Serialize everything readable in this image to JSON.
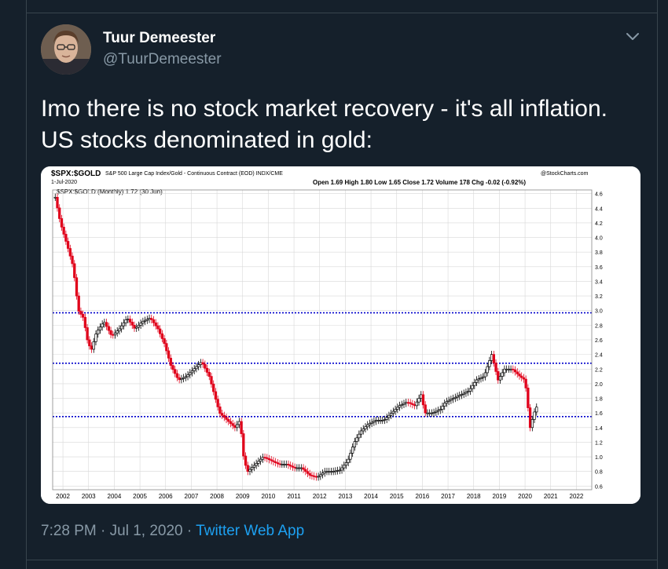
{
  "tweet": {
    "author_name": "Tuur Demeester",
    "author_handle": "@TuurDemeester",
    "text_line1": "Imo there is no stock market recovery - it's all inflation.",
    "text_line2": "US stocks denominated in gold:",
    "time": "7:28 PM",
    "separator1": " · ",
    "date": "Jul 1, 2020",
    "separator2": " · ",
    "source_app": "Twitter Web App"
  },
  "colors": {
    "background": "#15202b",
    "accent": "#1da1f2",
    "up_candle": "#000000",
    "down_candle": "#e0001a",
    "reference_line": "#0000cc"
  },
  "icons": {
    "menu": "chevron-down-icon"
  },
  "chart_header": {
    "symbol": "$SPX:$GOLD",
    "description": "S&P 500 Large Cap Index/Gold - Continuous Contract (EOD)  INDX/CME",
    "credit": "@StockCharts.com",
    "date": "1-Jul-2020",
    "stats": "Open 1.69  High 1.80  Low 1.65  Close 1.72  Volume 178  Chg -0.02 (-0.92%)",
    "legend": "$SPX:$GOLD (Monthly) 1.72 (30 Jun)"
  },
  "chart_data": {
    "type": "candlestick",
    "title": "$SPX:$GOLD",
    "frequency": "Monthly",
    "x_ticks": [
      "2002",
      "2003",
      "2004",
      "2005",
      "2006",
      "2007",
      "2008",
      "2009",
      "2010",
      "2011",
      "2012",
      "2013",
      "2014",
      "2015",
      "2016",
      "2017",
      "2018",
      "2019",
      "2020",
      "2021",
      "2022"
    ],
    "y_ticks": [
      "0.6",
      "0.8",
      "1.0",
      "1.2",
      "1.4",
      "1.6",
      "1.8",
      "2.0",
      "2.2",
      "2.4",
      "2.6",
      "2.8",
      "3.0",
      "3.2",
      "3.4",
      "3.6",
      "3.8",
      "4.0",
      "4.2",
      "4.4",
      "4.6"
    ],
    "ylim": [
      0.55,
      4.65
    ],
    "xlim": [
      2001.6,
      2022.6
    ],
    "reference_lines": [
      2.97,
      2.28,
      1.55
    ],
    "grid": true,
    "y_axis_side": "right",
    "closes": [
      {
        "t": 2001.7,
        "v": 4.55
      },
      {
        "t": 2001.9,
        "v": 4.2
      },
      {
        "t": 2002.2,
        "v": 3.85
      },
      {
        "t": 2002.4,
        "v": 3.6
      },
      {
        "t": 2002.6,
        "v": 3.0
      },
      {
        "t": 2002.8,
        "v": 2.9
      },
      {
        "t": 2002.95,
        "v": 2.6
      },
      {
        "t": 2003.1,
        "v": 2.45
      },
      {
        "t": 2003.3,
        "v": 2.7
      },
      {
        "t": 2003.6,
        "v": 2.85
      },
      {
        "t": 2003.9,
        "v": 2.65
      },
      {
        "t": 2004.2,
        "v": 2.75
      },
      {
        "t": 2004.5,
        "v": 2.9
      },
      {
        "t": 2004.8,
        "v": 2.75
      },
      {
        "t": 2005.1,
        "v": 2.85
      },
      {
        "t": 2005.4,
        "v": 2.9
      },
      {
        "t": 2005.7,
        "v": 2.75
      },
      {
        "t": 2005.95,
        "v": 2.55
      },
      {
        "t": 2006.2,
        "v": 2.25
      },
      {
        "t": 2006.5,
        "v": 2.05
      },
      {
        "t": 2006.8,
        "v": 2.1
      },
      {
        "t": 2007.1,
        "v": 2.2
      },
      {
        "t": 2007.4,
        "v": 2.3
      },
      {
        "t": 2007.7,
        "v": 2.1
      },
      {
        "t": 2007.9,
        "v": 1.85
      },
      {
        "t": 2008.1,
        "v": 1.6
      },
      {
        "t": 2008.4,
        "v": 1.5
      },
      {
        "t": 2008.7,
        "v": 1.4
      },
      {
        "t": 2008.9,
        "v": 1.5
      },
      {
        "t": 2009.05,
        "v": 0.95
      },
      {
        "t": 2009.2,
        "v": 0.8
      },
      {
        "t": 2009.5,
        "v": 0.9
      },
      {
        "t": 2009.8,
        "v": 1.0
      },
      {
        "t": 2010.1,
        "v": 0.95
      },
      {
        "t": 2010.4,
        "v": 0.9
      },
      {
        "t": 2010.7,
        "v": 0.9
      },
      {
        "t": 2011.0,
        "v": 0.85
      },
      {
        "t": 2011.3,
        "v": 0.85
      },
      {
        "t": 2011.6,
        "v": 0.75
      },
      {
        "t": 2011.9,
        "v": 0.72
      },
      {
        "t": 2012.2,
        "v": 0.8
      },
      {
        "t": 2012.5,
        "v": 0.8
      },
      {
        "t": 2012.8,
        "v": 0.82
      },
      {
        "t": 2013.1,
        "v": 0.95
      },
      {
        "t": 2013.35,
        "v": 1.2
      },
      {
        "t": 2013.6,
        "v": 1.35
      },
      {
        "t": 2013.9,
        "v": 1.45
      },
      {
        "t": 2014.2,
        "v": 1.5
      },
      {
        "t": 2014.5,
        "v": 1.5
      },
      {
        "t": 2014.8,
        "v": 1.6
      },
      {
        "t": 2015.1,
        "v": 1.7
      },
      {
        "t": 2015.4,
        "v": 1.75
      },
      {
        "t": 2015.7,
        "v": 1.7
      },
      {
        "t": 2015.95,
        "v": 1.85
      },
      {
        "t": 2016.1,
        "v": 1.6
      },
      {
        "t": 2016.4,
        "v": 1.6
      },
      {
        "t": 2016.7,
        "v": 1.65
      },
      {
        "t": 2016.9,
        "v": 1.75
      },
      {
        "t": 2017.2,
        "v": 1.8
      },
      {
        "t": 2017.5,
        "v": 1.85
      },
      {
        "t": 2017.8,
        "v": 1.9
      },
      {
        "t": 2018.1,
        "v": 2.05
      },
      {
        "t": 2018.4,
        "v": 2.1
      },
      {
        "t": 2018.7,
        "v": 2.4
      },
      {
        "t": 2018.95,
        "v": 2.05
      },
      {
        "t": 2019.2,
        "v": 2.2
      },
      {
        "t": 2019.5,
        "v": 2.2
      },
      {
        "t": 2019.8,
        "v": 2.1
      },
      {
        "t": 2020.0,
        "v": 2.05
      },
      {
        "t": 2020.2,
        "v": 1.4
      },
      {
        "t": 2020.35,
        "v": 1.6
      },
      {
        "t": 2020.5,
        "v": 1.72
      }
    ]
  }
}
